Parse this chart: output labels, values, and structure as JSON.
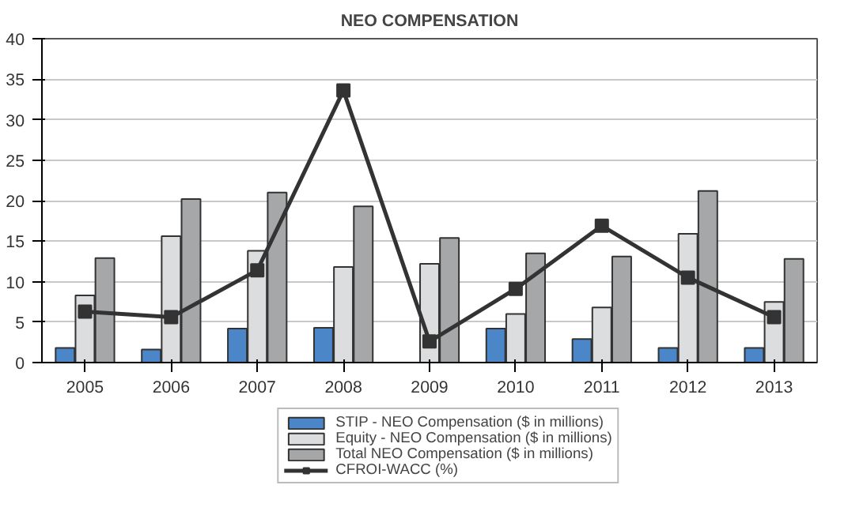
{
  "chart_data": {
    "type": "bar",
    "title": "NEO COMPENSATION",
    "categories": [
      "2005",
      "2006",
      "2007",
      "2008",
      "2009",
      "2010",
      "2011",
      "2012",
      "2013"
    ],
    "series": [
      {
        "name": "STIP - NEO Compensation ($ in millions)",
        "color": "#4a86c8",
        "values": [
          1.8,
          1.6,
          4.2,
          4.3,
          null,
          4.2,
          2.9,
          1.8,
          1.8
        ]
      },
      {
        "name": "Equity - NEO Compensation ($ in millions)",
        "color": "#dcdddf",
        "values": [
          8.3,
          15.6,
          13.8,
          11.8,
          12.2,
          6.0,
          6.8,
          15.9,
          7.5
        ]
      },
      {
        "name": "Total NEO Compensation ($ in millions)",
        "color": "#a6a7a9",
        "values": [
          12.9,
          20.2,
          21.0,
          19.3,
          15.4,
          13.5,
          13.1,
          21.2,
          12.8
        ]
      },
      {
        "name": "CFROI-WACC (%)",
        "type": "line",
        "color": "#333333",
        "marker": "square",
        "values": [
          6.3,
          5.6,
          11.4,
          33.6,
          2.6,
          9.1,
          16.9,
          10.5,
          5.6
        ]
      }
    ],
    "ylim": [
      0,
      40
    ],
    "yticks": [
      0,
      5,
      10,
      15,
      20,
      25,
      30,
      35,
      40
    ],
    "grid": "y",
    "legend": "bottom"
  }
}
